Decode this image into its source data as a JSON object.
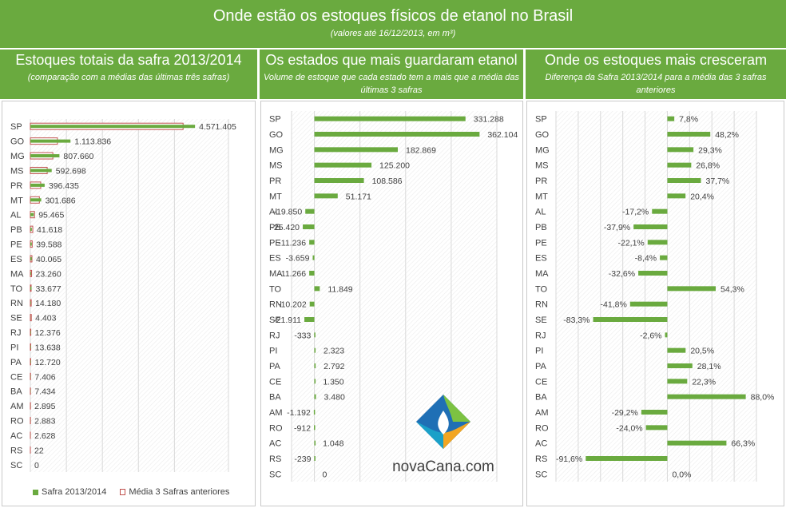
{
  "header": {
    "title": "Onde estão os estoques físicos de etanol no Brasil",
    "subtitle": "(valores até 16/12/2013, em m³)"
  },
  "panels": [
    {
      "title": "Estoques totais da safra 2013/2014",
      "subtitle": "(comparação com a médias das últimas três safras)"
    },
    {
      "title": "Os estados que mais guardaram etanol",
      "subtitle": "Volume de estoque que cada estado tem a mais que a média das últimas 3 safras"
    },
    {
      "title": "Onde os estoques mais cresceram",
      "subtitle": "Diferença da Safra 2013/2014 para a média das 3 safras anteriores"
    }
  ],
  "chart_data": [
    {
      "type": "bar",
      "orientation": "horizontal",
      "categories": [
        "SP",
        "GO",
        "MG",
        "MS",
        "PR",
        "MT",
        "AL",
        "PB",
        "PE",
        "ES",
        "MA",
        "TO",
        "RN",
        "SE",
        "RJ",
        "PI",
        "PA",
        "CE",
        "BA",
        "AM",
        "RO",
        "AC",
        "RS",
        "SC"
      ],
      "series": [
        {
          "name": "Safra 2013/2014",
          "color": "#6aaa3f",
          "values": [
            4571405,
            1113836,
            807660,
            592698,
            396435,
            301686,
            95465,
            41618,
            39588,
            40065,
            23260,
            33677,
            14180,
            4403,
            12376,
            13638,
            12720,
            7406,
            7434,
            2895,
            2883,
            2628,
            22,
            0
          ]
        },
        {
          "name": "Média 3 Safras anteriores",
          "color": "#c0504d",
          "values": [
            4240117,
            751732,
            624791,
            467498,
            287849,
            250515,
            115315,
            67038,
            50824,
            43724,
            34526,
            21828,
            24382,
            26314,
            12709,
            11315,
            9928,
            6056,
            3954,
            4087,
            3795,
            1580,
            261,
            0
          ]
        }
      ],
      "data_labels": [
        "4.571.405",
        "1.113.836",
        "807.660",
        "592.698",
        "396.435",
        "301.686",
        "95.465",
        "41.618",
        "39.588",
        "40.065",
        "23.260",
        "33.677",
        "14.180",
        "4.403",
        "12.376",
        "13.638",
        "12.720",
        "7.406",
        "7.434",
        "2.895",
        "2.883",
        "2.628",
        "22",
        "0"
      ],
      "xlim": [
        0,
        5500000
      ],
      "legend_position": "bottom",
      "grid": true
    },
    {
      "type": "bar",
      "orientation": "horizontal",
      "categories": [
        "SP",
        "GO",
        "MG",
        "MS",
        "PR",
        "MT",
        "AL",
        "PB",
        "PE",
        "ES",
        "MA",
        "TO",
        "RN",
        "SE",
        "RJ",
        "PI",
        "PA",
        "CE",
        "BA",
        "AM",
        "RO",
        "AC",
        "RS",
        "SC"
      ],
      "values": [
        331288,
        362104,
        182869,
        125200,
        108586,
        51171,
        -19850,
        -25420,
        -11236,
        -3659,
        -11266,
        11849,
        -10202,
        -21911,
        -333,
        2323,
        2792,
        1350,
        3480,
        -1192,
        -912,
        1048,
        -239,
        0
      ],
      "data_labels": [
        "331.288",
        "362.104",
        "182.869",
        "125.200",
        "108.586",
        "51.171",
        "-19.850",
        "-25.420",
        "-11.236",
        "-3.659",
        "-11.266",
        "11.849",
        "-10.202",
        "-21.911",
        "-333",
        "2.323",
        "2.792",
        "1.350",
        "3.480",
        "-1.192",
        "-912",
        "1.048",
        "-239",
        "0"
      ],
      "xlim": [
        -50000,
        400000
      ],
      "grid": true
    },
    {
      "type": "bar",
      "orientation": "horizontal",
      "categories": [
        "SP",
        "GO",
        "MG",
        "MS",
        "PR",
        "MT",
        "AL",
        "PB",
        "PE",
        "ES",
        "MA",
        "TO",
        "RN",
        "SE",
        "RJ",
        "PI",
        "PA",
        "CE",
        "BA",
        "AM",
        "RO",
        "AC",
        "RS",
        "SC"
      ],
      "values": [
        7.8,
        48.2,
        29.3,
        26.8,
        37.7,
        20.4,
        -17.2,
        -37.9,
        -22.1,
        -8.4,
        -32.6,
        54.3,
        -41.8,
        -83.3,
        -2.6,
        20.5,
        28.1,
        22.3,
        88.0,
        -29.2,
        -24.0,
        66.3,
        -91.6,
        0.0
      ],
      "data_labels": [
        "7,8%",
        "48,2%",
        "29,3%",
        "26,8%",
        "37,7%",
        "20,4%",
        "-17,2%",
        "-37,9%",
        "-22,1%",
        "-8,4%",
        "-32,6%",
        "54,3%",
        "-41,8%",
        "-83,3%",
        "-2,6%",
        "20,5%",
        "28,1%",
        "22,3%",
        "88,0%",
        "-29,2%",
        "-24,0%",
        "66,3%",
        "-91,6%",
        "0,0%"
      ],
      "xlim": [
        -125,
        100
      ],
      "grid": true
    }
  ],
  "logo": {
    "text": "novaCana.com"
  }
}
